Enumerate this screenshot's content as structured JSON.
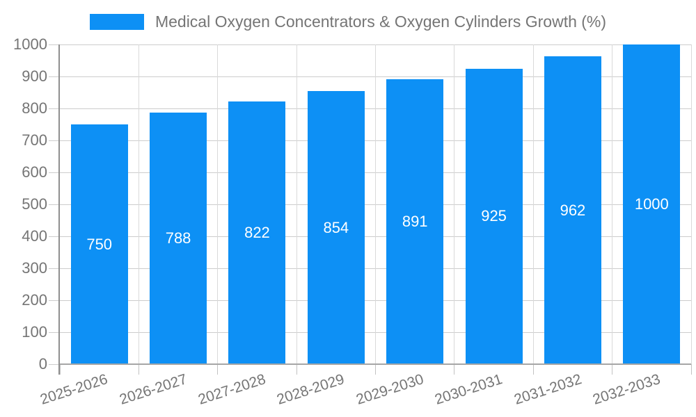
{
  "chart_data": {
    "type": "bar",
    "title": "Medical Oxygen Concentrators & Oxygen Cylinders Growth (%)",
    "categories": [
      "2025-2026",
      "2026-2027",
      "2027-2028",
      "2028-2029",
      "2029-2030",
      "2030-2031",
      "2031-2032",
      "2032-2033"
    ],
    "values": [
      750,
      788,
      822,
      854,
      891,
      925,
      962,
      1000
    ],
    "ylim": [
      0,
      1000
    ],
    "yticks": [
      0,
      100,
      200,
      300,
      400,
      500,
      600,
      700,
      800,
      900,
      1000
    ],
    "grid": true,
    "legend_position": "top",
    "bar_color": "#0d90f5",
    "value_label_color": "#ffffff",
    "axis_text_color": "#757575",
    "gridline_color": "#cccccc"
  }
}
